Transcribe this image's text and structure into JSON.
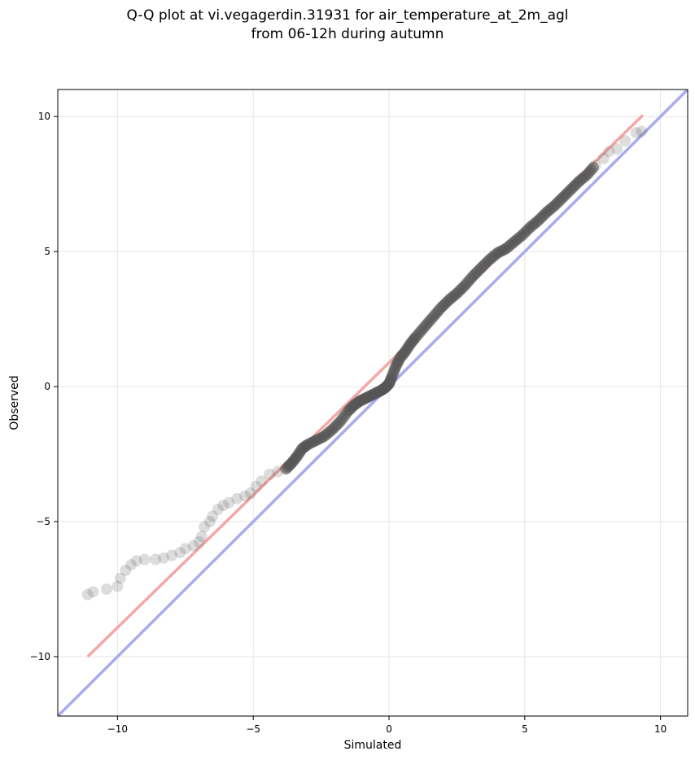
{
  "title_line1": "Q-Q plot at vi.vegagerdin.31931 for air_temperature_at_2m_agl",
  "title_line2": "from 06-12h during autumn",
  "chart_data": {
    "type": "scatter",
    "xlabel": "Simulated",
    "ylabel": "Observed",
    "xlim": [
      -12.2,
      11.0
    ],
    "ylim": [
      -12.2,
      11.0
    ],
    "xticks": [
      -10,
      -5,
      0,
      5,
      10
    ],
    "yticks": [
      -10,
      -5,
      0,
      5,
      10
    ],
    "xtick_labels": [
      "−10",
      "−5",
      "0",
      "5",
      "10"
    ],
    "ytick_labels": [
      "−10",
      "−5",
      "0",
      "5",
      "10"
    ],
    "grid": true,
    "points": [
      [
        -11.1,
        -7.7
      ],
      [
        -10.9,
        -7.6
      ],
      [
        -10.4,
        -7.5
      ],
      [
        -10.0,
        -7.4
      ],
      [
        -9.9,
        -7.1
      ],
      [
        -9.7,
        -6.8
      ],
      [
        -9.5,
        -6.6
      ],
      [
        -9.3,
        -6.45
      ],
      [
        -9.0,
        -6.4
      ],
      [
        -8.6,
        -6.4
      ],
      [
        -8.3,
        -6.35
      ],
      [
        -8.0,
        -6.25
      ],
      [
        -7.7,
        -6.15
      ],
      [
        -7.5,
        -6.0
      ],
      [
        -7.2,
        -5.9
      ],
      [
        -7.0,
        -5.75
      ],
      [
        -6.9,
        -5.55
      ],
      [
        -6.8,
        -5.2
      ],
      [
        -6.6,
        -5.0
      ],
      [
        -6.5,
        -4.8
      ],
      [
        -6.3,
        -4.55
      ],
      [
        -6.1,
        -4.4
      ],
      [
        -5.9,
        -4.3
      ],
      [
        -5.6,
        -4.15
      ],
      [
        -5.3,
        -4.05
      ],
      [
        -5.1,
        -3.95
      ],
      [
        -4.9,
        -3.7
      ],
      [
        -4.7,
        -3.5
      ],
      [
        -4.4,
        -3.25
      ],
      [
        -4.1,
        -3.15
      ],
      [
        -3.8,
        -3.05
      ],
      [
        -3.6,
        -2.85
      ],
      [
        -3.4,
        -2.6
      ],
      [
        -3.2,
        -2.3
      ],
      [
        -3.0,
        -2.15
      ],
      [
        -2.7,
        -2.0
      ],
      [
        -2.4,
        -1.85
      ],
      [
        -2.1,
        -1.6
      ],
      [
        -1.8,
        -1.3
      ],
      [
        -1.5,
        -0.9
      ],
      [
        -1.3,
        -0.7
      ],
      [
        -1.1,
        -0.55
      ],
      [
        -0.9,
        -0.45
      ],
      [
        -0.7,
        -0.35
      ],
      [
        -0.5,
        -0.25
      ],
      [
        -0.3,
        -0.15
      ],
      [
        -0.15,
        -0.05
      ],
      [
        0.0,
        0.1
      ],
      [
        0.1,
        0.35
      ],
      [
        0.25,
        0.75
      ],
      [
        0.4,
        1.05
      ],
      [
        0.6,
        1.3
      ],
      [
        0.8,
        1.6
      ],
      [
        1.0,
        1.85
      ],
      [
        1.3,
        2.2
      ],
      [
        1.6,
        2.55
      ],
      [
        1.9,
        2.9
      ],
      [
        2.2,
        3.2
      ],
      [
        2.5,
        3.45
      ],
      [
        2.8,
        3.75
      ],
      [
        3.1,
        4.1
      ],
      [
        3.4,
        4.4
      ],
      [
        3.7,
        4.7
      ],
      [
        4.0,
        4.95
      ],
      [
        4.3,
        5.1
      ],
      [
        4.6,
        5.35
      ],
      [
        4.9,
        5.6
      ],
      [
        5.2,
        5.9
      ],
      [
        5.5,
        6.15
      ],
      [
        5.8,
        6.45
      ],
      [
        6.1,
        6.7
      ],
      [
        6.4,
        7.0
      ],
      [
        6.7,
        7.3
      ],
      [
        7.0,
        7.6
      ],
      [
        7.3,
        7.85
      ],
      [
        7.6,
        8.2
      ],
      [
        7.9,
        8.45
      ],
      [
        8.1,
        8.7
      ],
      [
        8.4,
        8.8
      ],
      [
        8.7,
        9.1
      ],
      [
        9.1,
        9.4
      ],
      [
        9.3,
        9.45
      ]
    ],
    "reference_line": {
      "color": "#aaaaee",
      "from": [
        -12.2,
        -12.2
      ],
      "to": [
        11.0,
        11.0
      ]
    },
    "fit_line": {
      "color": "#f4a7a7",
      "from": [
        -11.1,
        -10.0
      ],
      "to": [
        9.35,
        10.05
      ]
    },
    "point_color": "#555555"
  }
}
